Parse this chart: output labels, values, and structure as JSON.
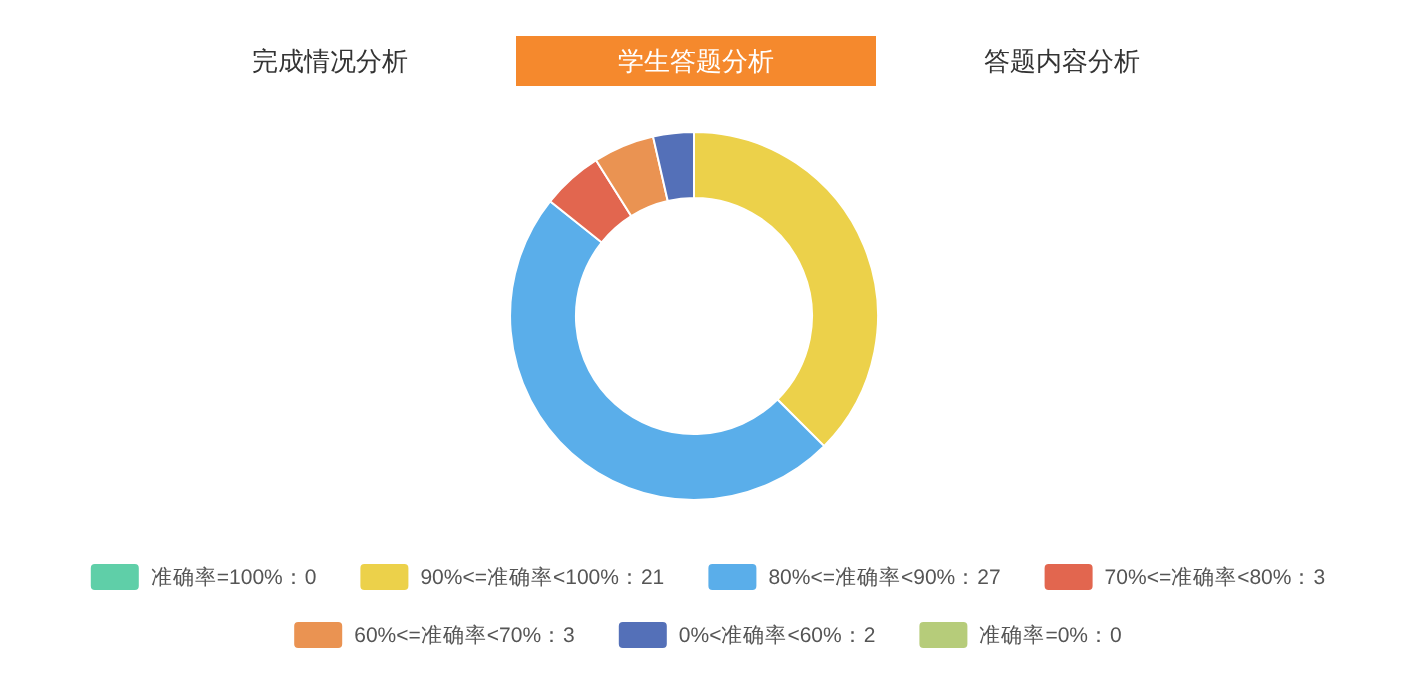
{
  "chart_data": {
    "type": "donut",
    "title": "学生答题分析",
    "annotations": [
      "完成情况分析",
      "答题内容分析"
    ],
    "categories": [
      "准确率=100%：0",
      "90%<=准确率<100%：21",
      "80%<=准确率<90%：27",
      "70%<=准确率<80%：3",
      "60%<=准确率<70%：3",
      "0%<准确率<60%：2",
      "准确率=0%：0"
    ],
    "values": [
      0,
      21,
      27,
      3,
      3,
      2,
      0
    ],
    "colors": [
      "#5fcfa8",
      "#ecd14a",
      "#5aaeea",
      "#e2664f",
      "#ea9352",
      "#5470b8",
      "#b6cc7a"
    ],
    "legend": "bottom"
  }
}
